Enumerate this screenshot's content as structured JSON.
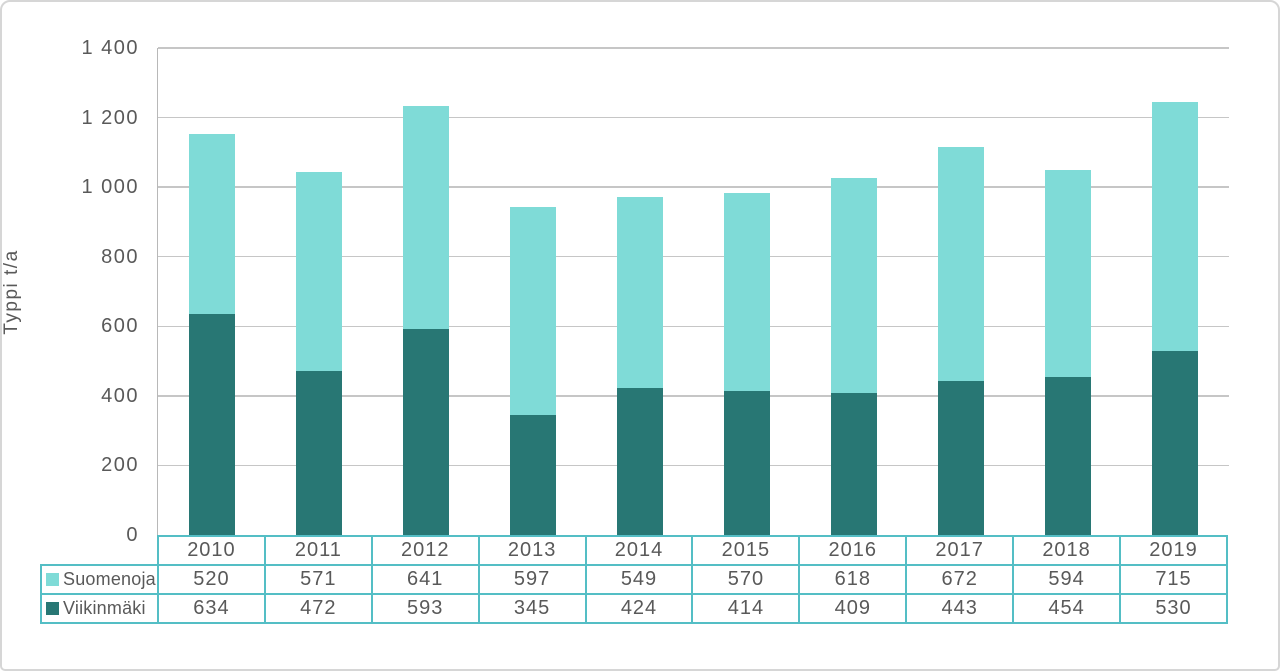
{
  "chart_data": {
    "type": "bar",
    "stacked": true,
    "title": "",
    "xlabel": "",
    "ylabel": "Typpi t/a",
    "categories": [
      "2010",
      "2011",
      "2012",
      "2013",
      "2014",
      "2015",
      "2016",
      "2017",
      "2018",
      "2019"
    ],
    "series": [
      {
        "name": "Suomenoja",
        "color": "#7fdbd7",
        "values": [
          520,
          571,
          641,
          597,
          549,
          570,
          618,
          672,
          594,
          715
        ]
      },
      {
        "name": "Viikinmäki",
        "color": "#287774",
        "values": [
          634,
          472,
          593,
          345,
          424,
          414,
          409,
          443,
          454,
          530
        ]
      }
    ],
    "stack_order_bottom_to_top": [
      "Viikinmäki",
      "Suomenoja"
    ],
    "ylim": [
      0,
      1400
    ],
    "ytick_step": 200,
    "ytick_labels": [
      "0",
      "200",
      "400",
      "600",
      "800",
      "1 000",
      "1 200",
      "1 400"
    ],
    "grid": true,
    "legend_position": "table-left-of-data-table"
  },
  "colors": {
    "grid": "#c6c6c6",
    "axis": "#b8b8b8",
    "text": "#595959",
    "table_border": "#54bec5",
    "frame_border": "#d6d6d6",
    "background": "#ffffff"
  }
}
